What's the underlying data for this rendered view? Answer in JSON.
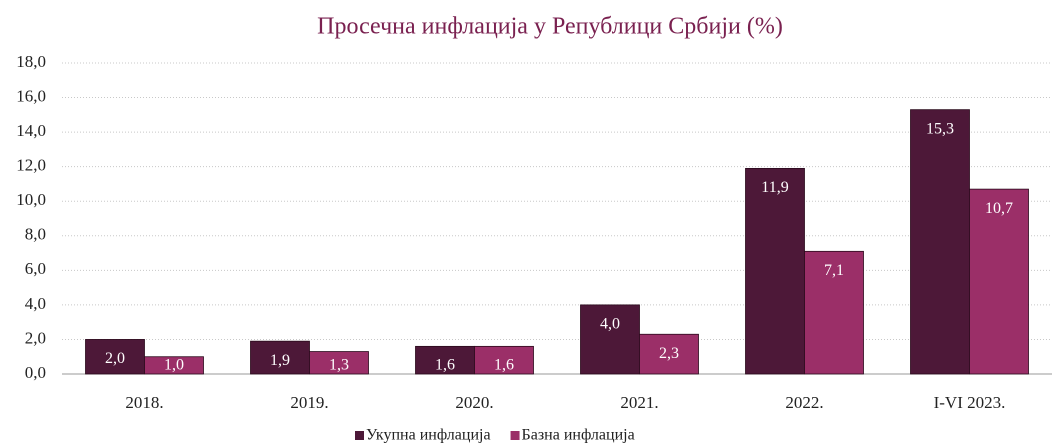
{
  "chart_data": {
    "type": "bar",
    "title": "Просечна инфлација у Републици Србији (%)",
    "categories": [
      "2018.",
      "2019.",
      "2020.",
      "2021.",
      "2022.",
      "I-VI 2023."
    ],
    "series": [
      {
        "name": "Укупна инфлација",
        "color": "#4d1838",
        "values": [
          2.0,
          1.9,
          1.6,
          4.0,
          11.9,
          15.3
        ],
        "value_labels": [
          "2,0",
          "1,9",
          "1,6",
          "4,0",
          "11,9",
          "15,3"
        ]
      },
      {
        "name": "Базна инфлација",
        "color": "#9b2f68",
        "values": [
          1.0,
          1.3,
          1.6,
          2.3,
          7.1,
          10.7
        ],
        "value_labels": [
          "1,0",
          "1,3",
          "1,6",
          "2,3",
          "7,1",
          "10,7"
        ]
      }
    ],
    "ylim": [
      0,
      18
    ],
    "yticks": [
      {
        "value": 0,
        "label": "0,0"
      },
      {
        "value": 2,
        "label": "2,0"
      },
      {
        "value": 4,
        "label": "4,0"
      },
      {
        "value": 6,
        "label": "6,0"
      },
      {
        "value": 8,
        "label": "8,0"
      },
      {
        "value": 10,
        "label": "10,0"
      },
      {
        "value": 12,
        "label": "12,0"
      },
      {
        "value": 14,
        "label": "14,0"
      },
      {
        "value": 16,
        "label": "16,0"
      },
      {
        "value": 18,
        "label": "18,0"
      }
    ],
    "grid": true,
    "legend": "bottom"
  }
}
